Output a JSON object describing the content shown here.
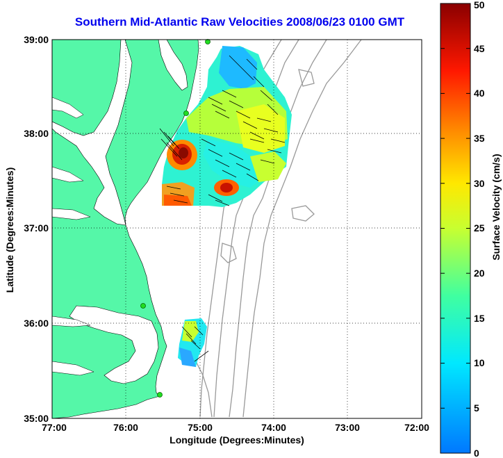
{
  "title": "Southern Mid-Atlantic Raw Velocities 2008/06/23 0100 GMT",
  "xlabel": "Longitude (Degrees:Minutes)",
  "ylabel": "Latitude (Degrees:Minutes)",
  "colorbar": {
    "label": "Surface Velocity (cm/s)",
    "min": 0,
    "max": 50,
    "ticks": [
      "0",
      "5",
      "10",
      "15",
      "20",
      "25",
      "30",
      "35",
      "40",
      "45",
      "50"
    ]
  },
  "map": {
    "xlim": [
      -77,
      -72
    ],
    "ylim": [
      35,
      39
    ],
    "x_ticks": [
      "77:00",
      "76:00",
      "75:00",
      "74:00",
      "73:00",
      "72:00"
    ],
    "y_ticks": [
      "35:00",
      "36:00",
      "37:00",
      "38:00",
      "39:00"
    ],
    "grid": "dotted",
    "land_color": "#55f7a8",
    "station_color": "#22dd22"
  }
}
